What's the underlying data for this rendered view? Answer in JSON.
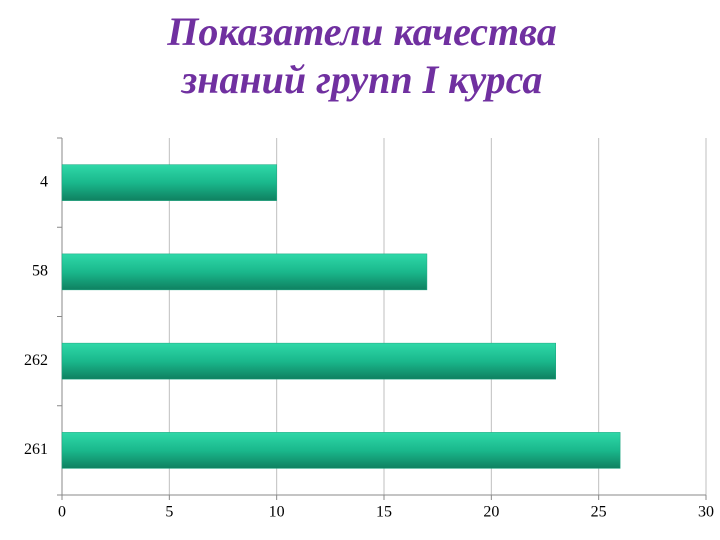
{
  "chart_data": {
    "type": "bar",
    "orientation": "horizontal",
    "title": [
      "Показатели качества",
      "знаний групп  I курса"
    ],
    "categories": [
      "4",
      "58",
      "262",
      "261"
    ],
    "values": [
      10,
      17,
      23,
      26
    ],
    "color": "#1aa57f",
    "xlim": [
      0,
      30
    ],
    "xticks": [
      0,
      5,
      10,
      15,
      20,
      25,
      30
    ],
    "grid": true
  }
}
